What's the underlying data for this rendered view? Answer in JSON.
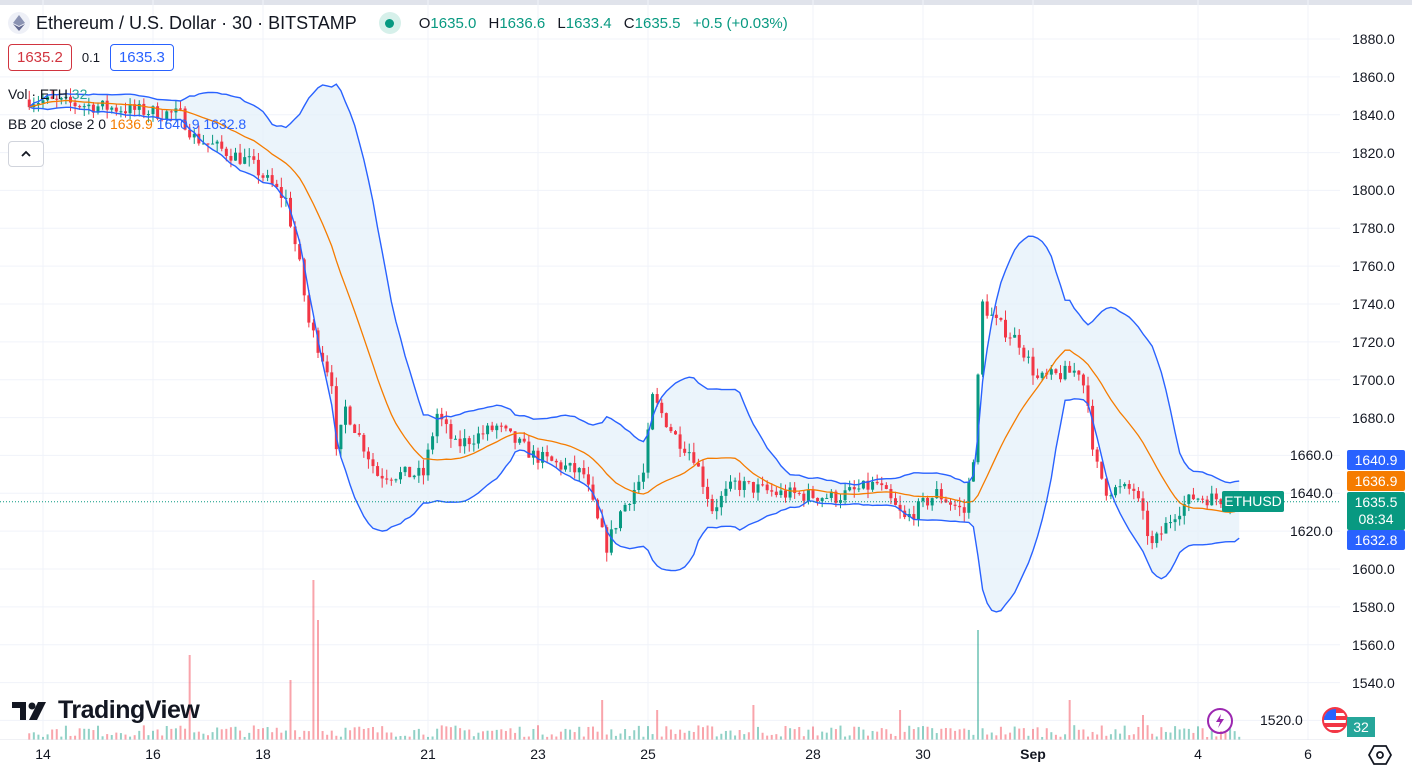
{
  "header": {
    "symbol_title": "Ethereum / U.S. Dollar · 30 · BITSTAMP",
    "ohlc": {
      "o_label": "O",
      "o": "1635.0",
      "h_label": "H",
      "h": "1636.6",
      "l_label": "L",
      "l": "1633.4",
      "c_label": "C",
      "c": "1635.5",
      "change": "+0.5 (+0.03%)"
    },
    "bid": "1635.2",
    "spread": "0.1",
    "ask": "1635.3",
    "market_status": "open"
  },
  "indicators": {
    "vol": {
      "label": "Vol · ETH",
      "value": "32"
    },
    "bb": {
      "label": "BB 20 close 2 0",
      "basis": "1636.9",
      "upper": "1640.9",
      "lower": "1632.8"
    },
    "collapse_icon": "chevron-up-icon"
  },
  "price_labels": {
    "upper": "1640.9",
    "basis": "1636.9",
    "last": "1635.5",
    "countdown": "08:34",
    "lower": "1632.8",
    "symbol_tag": "ETHUSD",
    "volume": "32"
  },
  "branding": {
    "logo_text": "TradingView"
  },
  "colors": {
    "up": "#089981",
    "down": "#f23645",
    "bb_band": "#2962ff",
    "bb_basis": "#f57c00",
    "bb_fill": "#e3effa",
    "grid": "#f0f3fa"
  },
  "chart_data": {
    "type": "candlestick",
    "interval": "30",
    "y_ticks": [
      "1880.0",
      "1860.0",
      "1840.0",
      "1820.0",
      "1800.0",
      "1780.0",
      "1760.0",
      "1740.0",
      "1720.0",
      "1700.0",
      "1680.0",
      "1660.0",
      "1640.0",
      "1620.0",
      "1600.0",
      "1580.0",
      "1560.0",
      "1540.0",
      "1520.0"
    ],
    "ylim": [
      1520,
      1880
    ],
    "x_ticks": [
      "14",
      "16",
      "18",
      "21",
      "23",
      "25",
      "28",
      "30",
      "Sep",
      "4",
      "6"
    ],
    "x_tick_days": [
      14,
      16,
      18,
      21,
      23,
      25,
      28,
      30,
      32,
      35,
      37
    ],
    "close_path": [
      [
        "Aug 13 18:00",
        1848
      ],
      [
        "Aug 16 12:00",
        1840
      ],
      [
        "Aug 16 18:00",
        1828
      ],
      [
        "Aug 17 18:00",
        1815
      ],
      [
        "Aug 18 10:00",
        1795
      ],
      [
        "Aug 18 16:00",
        1760
      ],
      [
        "Aug 18 20:00",
        1730
      ],
      [
        "Aug 19 06:00",
        1700
      ],
      [
        "Aug 19 08:00",
        1660
      ],
      [
        "Aug 19 12:00",
        1685
      ],
      [
        "Aug 19 20:00",
        1665
      ],
      [
        "Aug 20 02:00",
        1650
      ],
      [
        "Aug 20 22:00",
        1650
      ],
      [
        "Aug 21 04:00",
        1682
      ],
      [
        "Aug 21 12:00",
        1665
      ],
      [
        "Aug 22 06:00",
        1675
      ],
      [
        "Aug 22 22:00",
        1660
      ],
      [
        "Aug 23 20:00",
        1650
      ],
      [
        "Aug 24 02:00",
        1625
      ],
      [
        "Aug 24 06:00",
        1612
      ],
      [
        "Aug 24 12:00",
        1630
      ],
      [
        "Aug 24 22:00",
        1650
      ],
      [
        "Aug 25 02:00",
        1690
      ],
      [
        "Aug 25 12:00",
        1670
      ],
      [
        "Aug 25 20:00",
        1660
      ],
      [
        "Aug 26 04:00",
        1632
      ],
      [
        "Aug 26 14:00",
        1645
      ],
      [
        "Aug 27 08:00",
        1640
      ],
      [
        "Aug 28 10:00",
        1638
      ],
      [
        "Aug 29 04:00",
        1645
      ],
      [
        "Aug 29 16:00",
        1626
      ],
      [
        "Aug 30 06:00",
        1640
      ],
      [
        "Aug 30 18:00",
        1630
      ],
      [
        "Aug 30 22:00",
        1660
      ],
      [
        "Aug 31 02:00",
        1740
      ],
      [
        "Aug 31 08:00",
        1730
      ],
      [
        "Aug 31 18:00",
        1720
      ],
      [
        "Sep 01 02:00",
        1700
      ],
      [
        "Sep 01 20:00",
        1705
      ],
      [
        "Sep 02 00:00",
        1690
      ],
      [
        "Sep 02 02:00",
        1660
      ],
      [
        "Sep 02 08:00",
        1642
      ],
      [
        "Sep 02 20:00",
        1642
      ],
      [
        "Sep 03 04:00",
        1612
      ],
      [
        "Sep 03 14:00",
        1630
      ],
      [
        "Sep 03 22:00",
        1638
      ],
      [
        "Sep 05 10:00",
        1635.5
      ]
    ],
    "volume_spikes": [
      [
        "Aug 16 16:00",
        85
      ],
      [
        "Aug 18 12:00",
        60
      ],
      [
        "Aug 18 22:00",
        160
      ],
      [
        "Aug 19 00:00",
        120
      ],
      [
        "Aug 24 04:00",
        40
      ],
      [
        "Aug 25 04:00",
        30
      ],
      [
        "Aug 26 22:00",
        35
      ],
      [
        "Aug 29 14:00",
        30
      ],
      [
        "Aug 31 00:00",
        110
      ],
      [
        "Sep 01 16:00",
        40
      ],
      [
        "Sep 03 00:00",
        25
      ]
    ]
  }
}
